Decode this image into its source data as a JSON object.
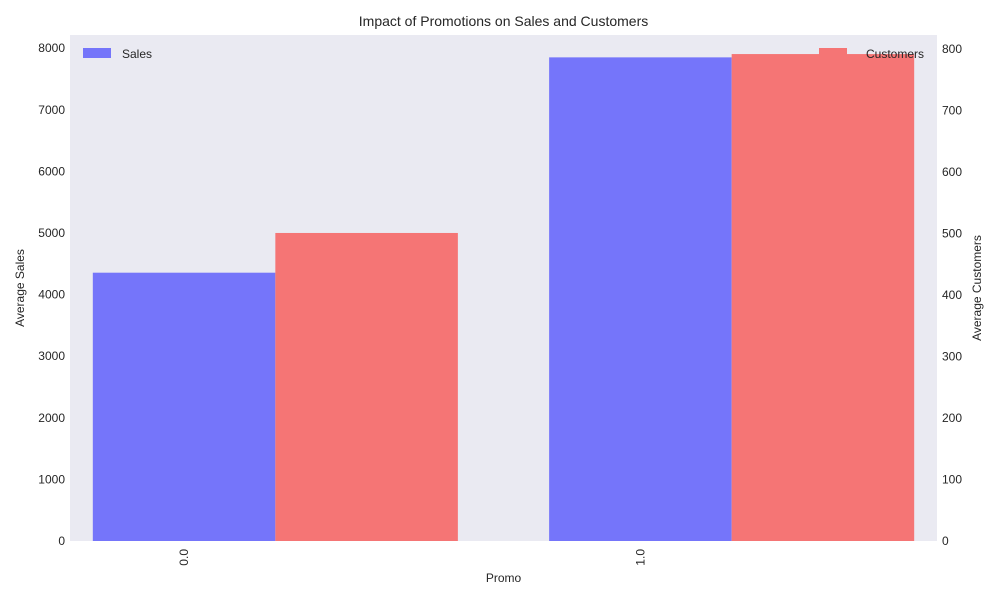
{
  "chart_data": {
    "type": "bar",
    "title": "Impact of Promotions on Sales and Customers",
    "xlabel": "Promo",
    "ylabel_left": "Average Sales",
    "ylabel_right": "Average Customers",
    "categories": [
      "0.0",
      "1.0"
    ],
    "series": [
      {
        "name": "Sales",
        "axis": "left",
        "values": [
          4356,
          7852
        ],
        "color": "#7575fa"
      },
      {
        "name": "Customers",
        "axis": "right",
        "values": [
          501,
          792
        ],
        "color": "#f57575"
      }
    ],
    "ylim_left": [
      0,
      8215
    ],
    "ylim_right": [
      0,
      823
    ],
    "yticks_left": [
      "0",
      "1000",
      "2000",
      "3000",
      "4000",
      "5000",
      "6000",
      "7000",
      "8000"
    ],
    "yticks_right": [
      "0",
      "100",
      "200",
      "300",
      "400",
      "500",
      "600",
      "700",
      "800"
    ],
    "legend_left": "upper-left",
    "legend_right": "upper-right",
    "grid": false,
    "background": "#eaeaf2"
  }
}
